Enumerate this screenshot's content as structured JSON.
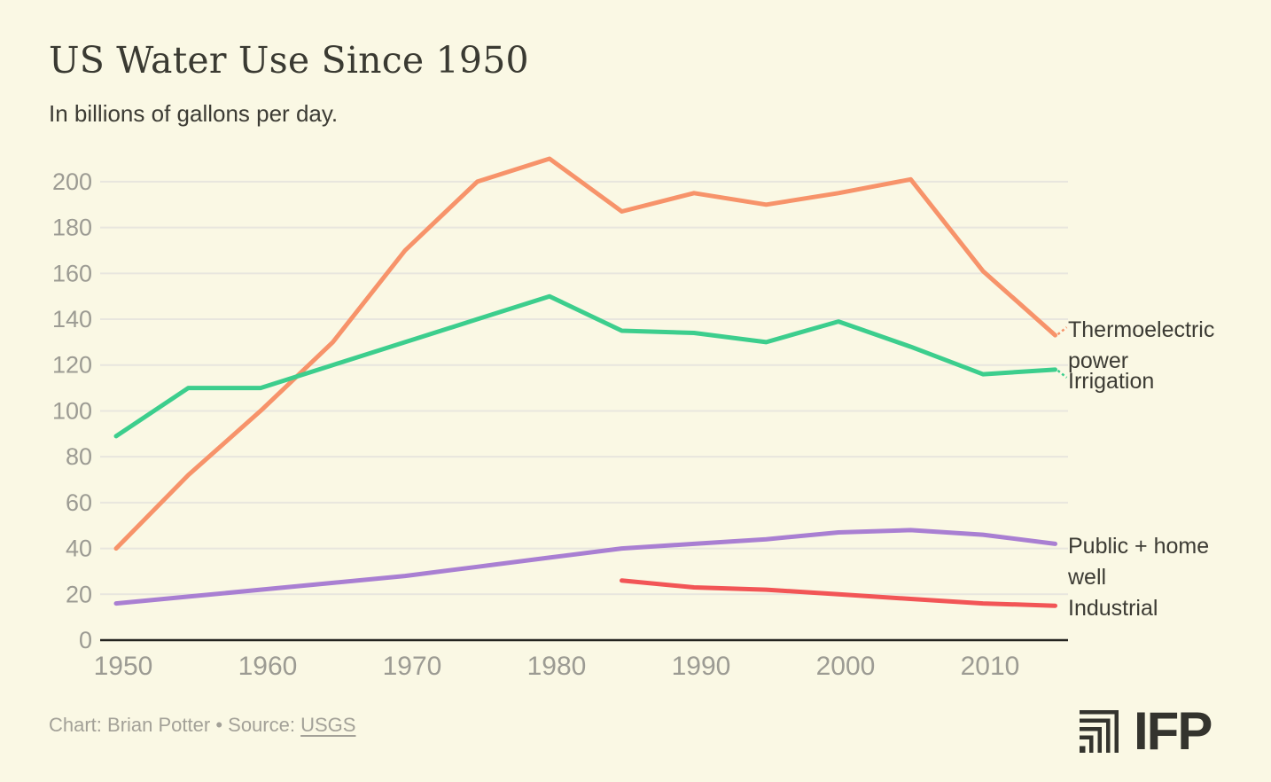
{
  "header": {
    "title": "US Water Use Since 1950",
    "subtitle": "In billions of gallons per day."
  },
  "footer": {
    "credit": "Chart: Brian Potter",
    "bullet": "•",
    "source_prefix": "Source:",
    "source": "USGS"
  },
  "logo": {
    "text": "IFP"
  },
  "colors": {
    "background": "#FAF8E4",
    "grid": "#E8E6DE",
    "axis": "#23231F",
    "tick_text": "#9C9B93",
    "label_text": "#3C3B34"
  },
  "chart_data": {
    "type": "line",
    "title": "US Water Use Since 1950",
    "subtitle": "In billions of gallons per day.",
    "xlabel": "",
    "ylabel": "In billions of gallons per day",
    "xlim": [
      1950,
      2015
    ],
    "ylim": [
      0,
      215
    ],
    "grid": "horizontal-only",
    "legend_position": "right-of-line-ends",
    "y_ticks": [
      0,
      20,
      40,
      60,
      80,
      100,
      120,
      140,
      160,
      180,
      200
    ],
    "x_ticks": [
      1950,
      1960,
      1970,
      1980,
      1990,
      2000,
      2010
    ],
    "series": [
      {
        "name": "Thermoelectric power",
        "color": "#F7936A",
        "x": [
          1950,
          1955,
          1960,
          1965,
          1970,
          1975,
          1980,
          1985,
          1990,
          1995,
          2000,
          2005,
          2010,
          2015
        ],
        "values": [
          40,
          72,
          100,
          130,
          170,
          200,
          210,
          187,
          195,
          190,
          195,
          201,
          161,
          133
        ]
      },
      {
        "name": "Irrigation",
        "color": "#3CCE8D",
        "x": [
          1950,
          1955,
          1960,
          1965,
          1970,
          1975,
          1980,
          1985,
          1990,
          1995,
          2000,
          2005,
          2010,
          2015
        ],
        "values": [
          89,
          110,
          110,
          120,
          130,
          140,
          150,
          135,
          134,
          130,
          139,
          128,
          116,
          118
        ]
      },
      {
        "name": "Public + home well",
        "color": "#A97FD2",
        "x": [
          1950,
          1955,
          1960,
          1965,
          1970,
          1975,
          1980,
          1985,
          1990,
          1995,
          2000,
          2005,
          2010,
          2015
        ],
        "values": [
          16,
          19,
          22,
          25,
          28,
          32,
          36,
          40,
          42,
          44,
          47,
          48,
          46,
          42
        ]
      },
      {
        "name": "Industrial",
        "color": "#F25556",
        "x": [
          1985,
          1990,
          1995,
          2000,
          2005,
          2010,
          2015
        ],
        "values": [
          26,
          23,
          22,
          20,
          18,
          16,
          15
        ]
      }
    ]
  }
}
